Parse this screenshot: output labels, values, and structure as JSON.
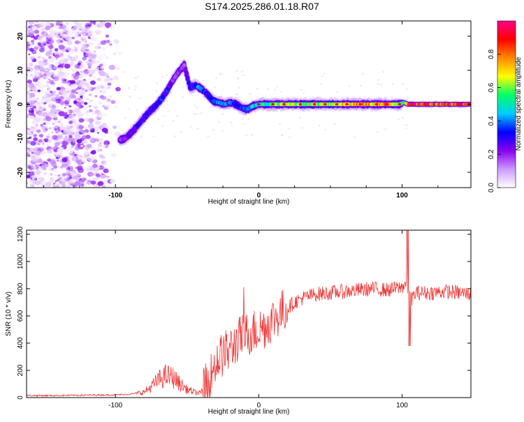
{
  "title": "S174.2025.286.01.18.R07",
  "chart_data": [
    {
      "type": "heatmap",
      "name": "spectrogram",
      "xlabel": "Height of straight line (km)",
      "ylabel": "Frequency (Hz)",
      "xlim": [
        -162,
        148
      ],
      "ylim": [
        -24.5,
        24.5
      ],
      "xticks": [
        -100,
        0,
        100
      ],
      "yticks": [
        -20,
        -10,
        0,
        10,
        20
      ],
      "colorbar": {
        "label": "Normalized spectral amplitude",
        "range": [
          0.0,
          1.0
        ],
        "ticks": [
          0.0,
          0.2,
          0.4,
          0.6,
          0.8
        ],
        "colors": [
          "#ffffff",
          "#cc99ff",
          "#8800ee",
          "#0000ff",
          "#00ccff",
          "#00ff66",
          "#ffff00",
          "#ff8800",
          "#ff0000",
          "#ff0088"
        ]
      },
      "ridge": {
        "x": [
          -97,
          -93,
          -88,
          -84,
          -80,
          -76,
          -72,
          -68,
          -64,
          -60,
          -56,
          -52,
          -48,
          -44,
          -40,
          -36,
          -32,
          -28,
          -24,
          -20,
          -16,
          -12,
          -8,
          -4,
          0,
          10,
          20,
          30,
          40,
          50,
          60,
          70,
          80,
          90,
          98,
          101,
          104,
          110,
          120,
          130,
          140,
          147
        ],
        "freq": [
          -10.5,
          -10,
          -8,
          -6,
          -4,
          -2,
          -0.5,
          1.5,
          4,
          7,
          9.5,
          11.5,
          5,
          5.5,
          4.5,
          3,
          1,
          0.5,
          0,
          0.5,
          0,
          -1,
          -1.5,
          -0.5,
          0,
          0,
          0,
          0,
          0,
          0,
          0,
          0,
          0,
          0,
          0,
          0.5,
          0,
          0,
          0,
          0,
          0,
          0
        ],
        "amplitude": [
          0.2,
          0.25,
          0.3,
          0.3,
          0.3,
          0.3,
          0.3,
          0.35,
          0.35,
          0.2,
          0.2,
          0.2,
          0.35,
          0.4,
          0.45,
          0.3,
          0.4,
          0.45,
          0.4,
          0.45,
          0.3,
          0.35,
          0.45,
          0.5,
          0.5,
          0.6,
          0.65,
          0.65,
          0.7,
          0.7,
          0.75,
          0.8,
          0.8,
          0.8,
          0.7,
          0.6,
          0.95,
          0.95,
          0.95,
          0.95,
          0.95,
          0.95
        ]
      }
    },
    {
      "type": "line",
      "name": "snr",
      "xlabel": "Height of straight line (km)",
      "ylabel": "SNR (10 * v/v)",
      "xlim": [
        -162,
        148
      ],
      "ylim": [
        0,
        1230
      ],
      "xticks": [
        -100,
        0,
        100
      ],
      "yticks": [
        0,
        200,
        400,
        600,
        800,
        1000,
        1200
      ],
      "series": [
        {
          "name": "SNR",
          "color": "#ee3333",
          "x": [
            -162,
            -140,
            -120,
            -100,
            -90,
            -80,
            -75,
            -70,
            -65,
            -60,
            -55,
            -50,
            -45,
            -40,
            -35,
            -30,
            -25,
            -20,
            -15,
            -10,
            -5,
            0,
            5,
            10,
            15,
            20,
            25,
            30,
            40,
            50,
            60,
            70,
            80,
            90,
            95,
            100,
            103,
            106,
            110,
            120,
            130,
            140,
            148
          ],
          "y": [
            15,
            15,
            18,
            20,
            25,
            40,
            80,
            130,
            160,
            150,
            100,
            60,
            40,
            30,
            120,
            260,
            320,
            350,
            420,
            460,
            480,
            500,
            530,
            580,
            620,
            660,
            700,
            730,
            760,
            770,
            780,
            790,
            800,
            790,
            800,
            810,
            850,
            720,
            770,
            770,
            780,
            770,
            760
          ]
        }
      ]
    }
  ]
}
